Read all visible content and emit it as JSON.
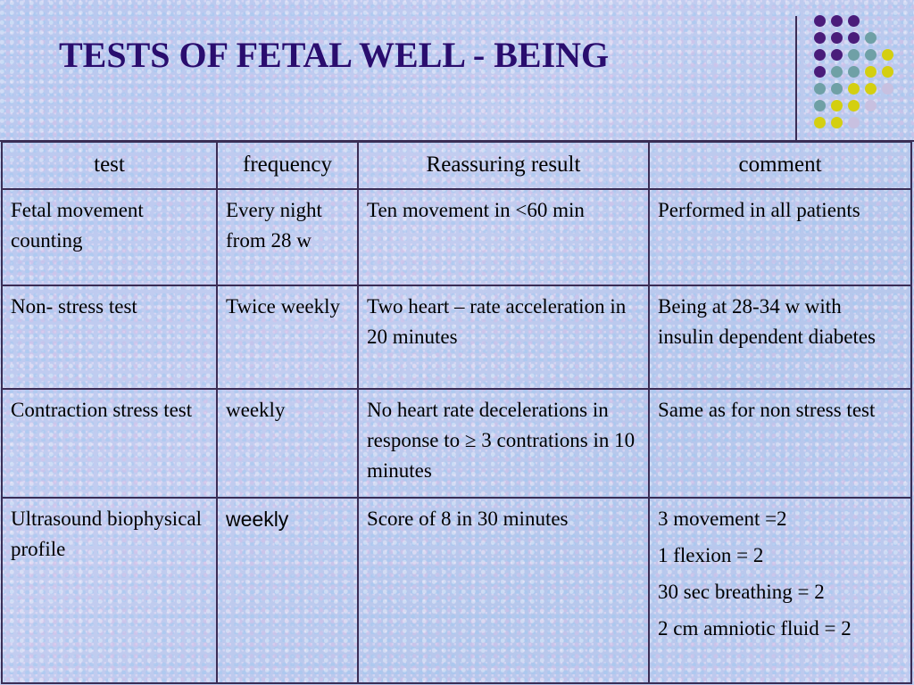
{
  "title": "TESTS OF FETAL WELL - BEING",
  "colors": {
    "title": "#2a0d6e",
    "purple_dot": "#4a1c7a",
    "teal_dot": "#6fa0a6",
    "yellow_dot": "#d4cf10"
  },
  "table": {
    "headers": [
      "test",
      "frequency",
      "Reassuring result",
      "comment"
    ],
    "rows": [
      {
        "test": "Fetal movement counting",
        "frequency": "Every night from 28 w",
        "result": "Ten movement in <60 min",
        "comment": "Performed in all patients"
      },
      {
        "test": "Non- stress test",
        "frequency": "Twice weekly",
        "result": "Two heart – rate acceleration in 20 minutes",
        "comment": "Being at 28-34 w with insulin dependent diabetes"
      },
      {
        "test": "Contraction stress test",
        "frequency": "weekly",
        "result": "No heart rate decelerations in response to ≥ 3 contrations in 10 minutes",
        "comment": "Same as for non stress test"
      },
      {
        "test": "Ultrasound biophysical profile",
        "frequency": "weekly",
        "result": "Score of 8 in 30 minutes",
        "comment_lines": [
          "3 movement =2",
          "1 flexion = 2",
          "30 sec breathing = 2",
          "2 cm amniotic fluid = 2"
        ]
      }
    ]
  }
}
